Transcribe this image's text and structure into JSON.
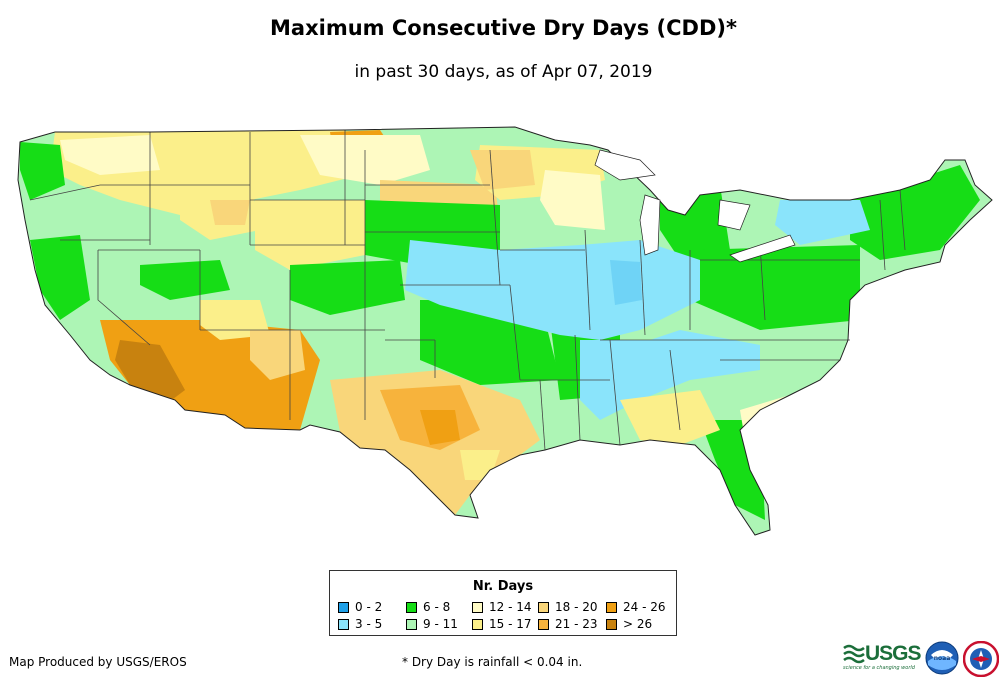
{
  "title": "Maximum Consecutive Dry Days (CDD)*",
  "subtitle": "in past 30 days, as of Apr 07, 2019",
  "legend": {
    "title": "Nr. Days",
    "items": [
      {
        "label": "0 - 2",
        "color": "#1fa0e8"
      },
      {
        "label": "3 - 5",
        "color": "#8ae4fb"
      },
      {
        "label": "6 - 8",
        "color": "#16dd16"
      },
      {
        "label": "9 - 11",
        "color": "#adf5b5"
      },
      {
        "label": "12 - 14",
        "color": "#fffbc6"
      },
      {
        "label": "15 - 17",
        "color": "#fbef8a"
      },
      {
        "label": "18 - 20",
        "color": "#f9d67a"
      },
      {
        "label": "21 - 23",
        "color": "#f7b33c"
      },
      {
        "label": "24 - 26",
        "color": "#f0a013"
      },
      {
        "label": "> 26",
        "color": "#c8820f"
      }
    ]
  },
  "credit": "Map Produced by USGS/EROS",
  "footnote": "* Dry Day is rainfall < 0.04 in.",
  "logos": {
    "usgs": "USGS",
    "usgs_tagline": "science for a changing world",
    "noaa": "noaa",
    "nws": "nws-seal-icon"
  }
}
